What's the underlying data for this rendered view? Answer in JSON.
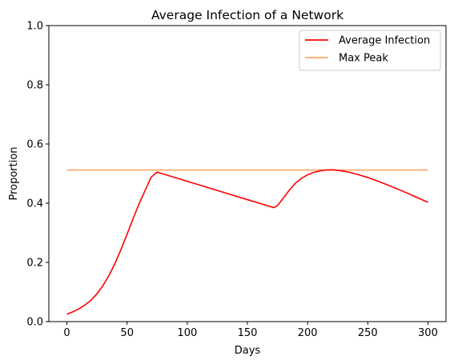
{
  "chart_data": {
    "type": "line",
    "title": "Average Infection of a Network",
    "xlabel": "Days",
    "ylabel": "Proportion",
    "xlim": [
      -15,
      315
    ],
    "ylim": [
      0,
      1.0
    ],
    "x_ticks": [
      0,
      50,
      100,
      150,
      200,
      250,
      300
    ],
    "y_ticks": [
      0.0,
      0.2,
      0.4,
      0.6,
      0.8,
      1.0
    ],
    "grid": false,
    "legend_position": "top-right",
    "series": [
      {
        "name": "Average Infection",
        "color": "#ff0000",
        "points": [
          [
            0,
            0.025
          ],
          [
            5,
            0.033
          ],
          [
            10,
            0.043
          ],
          [
            15,
            0.056
          ],
          [
            20,
            0.072
          ],
          [
            25,
            0.094
          ],
          [
            30,
            0.122
          ],
          [
            35,
            0.156
          ],
          [
            40,
            0.197
          ],
          [
            45,
            0.244
          ],
          [
            50,
            0.295
          ],
          [
            55,
            0.348
          ],
          [
            60,
            0.398
          ],
          [
            65,
            0.443
          ],
          [
            70,
            0.488
          ],
          [
            75,
            0.505
          ],
          [
            100,
            0.474
          ],
          [
            125,
            0.443
          ],
          [
            150,
            0.412
          ],
          [
            172,
            0.385
          ],
          [
            175,
            0.392
          ],
          [
            180,
            0.418
          ],
          [
            185,
            0.445
          ],
          [
            190,
            0.468
          ],
          [
            195,
            0.484
          ],
          [
            200,
            0.496
          ],
          [
            205,
            0.504
          ],
          [
            210,
            0.509
          ],
          [
            215,
            0.512
          ],
          [
            220,
            0.513
          ],
          [
            225,
            0.511
          ],
          [
            230,
            0.508
          ],
          [
            235,
            0.504
          ],
          [
            240,
            0.499
          ],
          [
            250,
            0.487
          ],
          [
            260,
            0.472
          ],
          [
            270,
            0.456
          ],
          [
            280,
            0.439
          ],
          [
            290,
            0.421
          ],
          [
            300,
            0.403
          ]
        ]
      },
      {
        "name": "Max Peak",
        "color": "#ffa466",
        "points": [
          [
            0,
            0.512
          ],
          [
            300,
            0.512
          ]
        ]
      }
    ]
  }
}
